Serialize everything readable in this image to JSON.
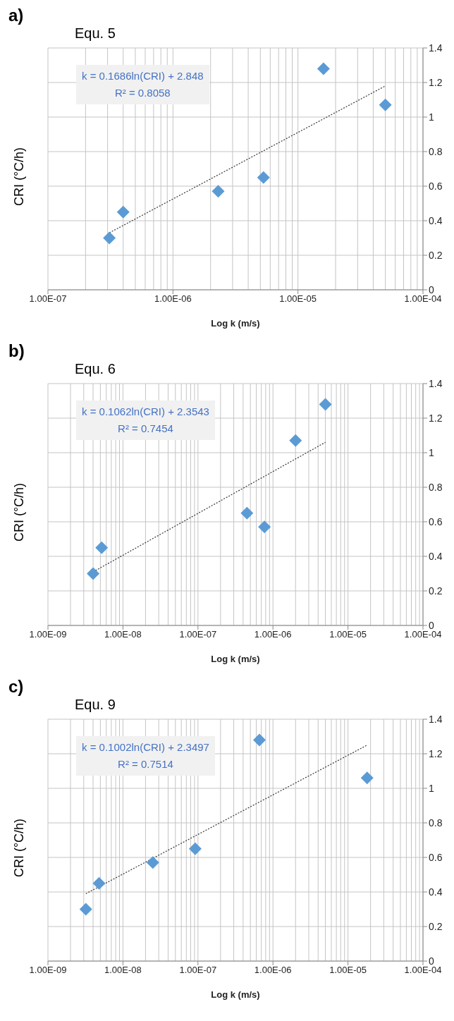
{
  "chart_data": [
    {
      "type": "scatter",
      "title": "Equ. 5",
      "xlabel": "Log k (m/s)",
      "ylabel": "CRI (°C/h)",
      "annotations": [
        "a)",
        "k = 0.1686ln(CRI) + 2.848",
        "R² = 0.8058"
      ],
      "log": "x",
      "grid": true,
      "marker": "diamond",
      "xlim": [
        1e-07,
        0.0001
      ],
      "xticks": [
        {
          "value": 1e-07,
          "label": "1.00E-07"
        },
        {
          "value": 1e-06,
          "label": "1.00E-06"
        },
        {
          "value": 1e-05,
          "label": "1.00E-05"
        },
        {
          "value": 0.0001,
          "label": "1.00E-04"
        }
      ],
      "ylim": [
        0,
        1.4
      ],
      "yticks": [
        0,
        0.2,
        0.4,
        0.6,
        0.8,
        1,
        1.2,
        1.4
      ],
      "series": [
        {
          "type": "scatter",
          "color": "#5b9bd5",
          "x": [
            3.1e-07,
            4e-07,
            2.3e-06,
            5.3e-06,
            1.6e-05,
            5e-05
          ],
          "values": [
            0.3,
            0.45,
            0.57,
            0.65,
            1.28,
            1.07
          ]
        },
        {
          "type": "line",
          "color": "#333333",
          "line_style": "dotted",
          "marker": "none",
          "x": [
            3.1e-07,
            5e-05
          ],
          "values": [
            0.33,
            1.18
          ]
        }
      ]
    },
    {
      "type": "scatter",
      "title": "Equ. 6",
      "xlabel": "Log k (m/s)",
      "ylabel": "CRI (°C/h)",
      "annotations": [
        "b)",
        "k = 0.1062ln(CRI) + 2.3543",
        "R² = 0.7454"
      ],
      "log": "x",
      "grid": true,
      "marker": "diamond",
      "xlim": [
        1e-09,
        0.0001
      ],
      "xticks": [
        {
          "value": 1e-09,
          "label": "1.00E-09"
        },
        {
          "value": 1e-08,
          "label": "1.00E-08"
        },
        {
          "value": 1e-07,
          "label": "1.00E-07"
        },
        {
          "value": 1e-06,
          "label": "1.00E-06"
        },
        {
          "value": 1e-05,
          "label": "1.00E-05"
        },
        {
          "value": 0.0001,
          "label": "1.00E-04"
        }
      ],
      "ylim": [
        0,
        1.4
      ],
      "yticks": [
        0,
        0.2,
        0.4,
        0.6,
        0.8,
        1,
        1.2,
        1.4
      ],
      "series": [
        {
          "type": "scatter",
          "color": "#5b9bd5",
          "x": [
            4e-09,
            5.2e-09,
            4.5e-07,
            7.7e-07,
            2e-06,
            5e-06
          ],
          "values": [
            0.3,
            0.45,
            0.65,
            0.57,
            1.07,
            1.28
          ]
        },
        {
          "type": "line",
          "color": "#333333",
          "line_style": "dotted",
          "marker": "none",
          "x": [
            4e-09,
            5e-06
          ],
          "values": [
            0.31,
            1.06
          ]
        }
      ]
    },
    {
      "type": "scatter",
      "title": "Equ. 9",
      "xlabel": "Log k (m/s)",
      "ylabel": "CRI (°C/h)",
      "annotations": [
        "c)",
        "k = 0.1002ln(CRI) + 2.3497",
        "R² = 0.7514"
      ],
      "log": "x",
      "grid": true,
      "marker": "diamond",
      "xlim": [
        1e-09,
        0.0001
      ],
      "xticks": [
        {
          "value": 1e-09,
          "label": "1.00E-09"
        },
        {
          "value": 1e-08,
          "label": "1.00E-08"
        },
        {
          "value": 1e-07,
          "label": "1.00E-07"
        },
        {
          "value": 1e-06,
          "label": "1.00E-06"
        },
        {
          "value": 1e-05,
          "label": "1.00E-05"
        },
        {
          "value": 0.0001,
          "label": "1.00E-04"
        }
      ],
      "ylim": [
        0,
        1.4
      ],
      "yticks": [
        0,
        0.2,
        0.4,
        0.6,
        0.8,
        1,
        1.2,
        1.4
      ],
      "series": [
        {
          "type": "scatter",
          "color": "#5b9bd5",
          "x": [
            3.2e-09,
            4.8e-09,
            2.5e-08,
            9.2e-08,
            6.6e-07,
            1.8e-05
          ],
          "values": [
            0.3,
            0.45,
            0.57,
            0.65,
            1.28,
            1.06
          ]
        },
        {
          "type": "line",
          "color": "#333333",
          "line_style": "dotted",
          "marker": "none",
          "x": [
            3.2e-09,
            1.8e-05
          ],
          "values": [
            0.39,
            1.25
          ]
        }
      ]
    }
  ]
}
